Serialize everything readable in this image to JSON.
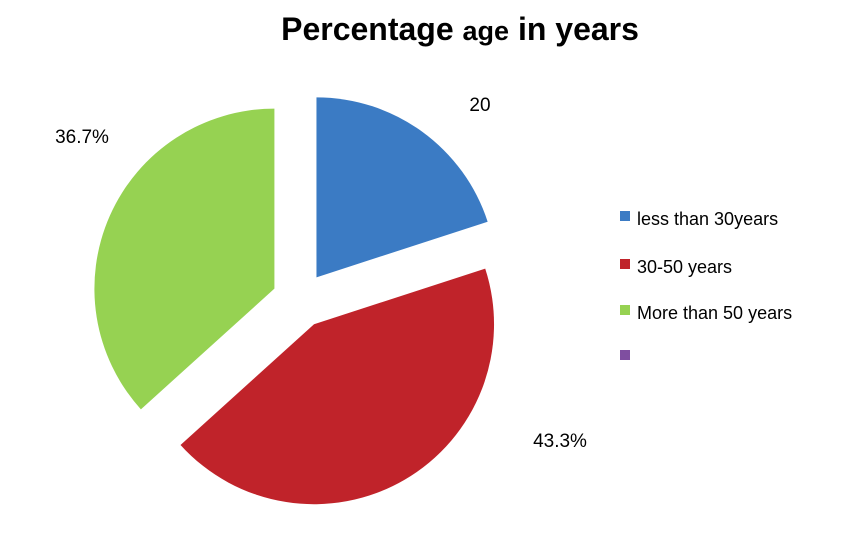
{
  "chart_data": {
    "type": "pie",
    "title": {
      "part1": "Percentage ",
      "part2": "age",
      "part3": " in years"
    },
    "categories": [
      "less than 30years",
      "30-50 years",
      "More than 50 years",
      ""
    ],
    "values": [
      20,
      43.3,
      36.7,
      0
    ],
    "data_labels": [
      "20",
      "43.3%",
      "36.7%",
      ""
    ],
    "colors": [
      "#3b7bc4",
      "#c0232a",
      "#96d252",
      "#7f4ea0"
    ],
    "exploded": true,
    "legend_position": "right"
  }
}
